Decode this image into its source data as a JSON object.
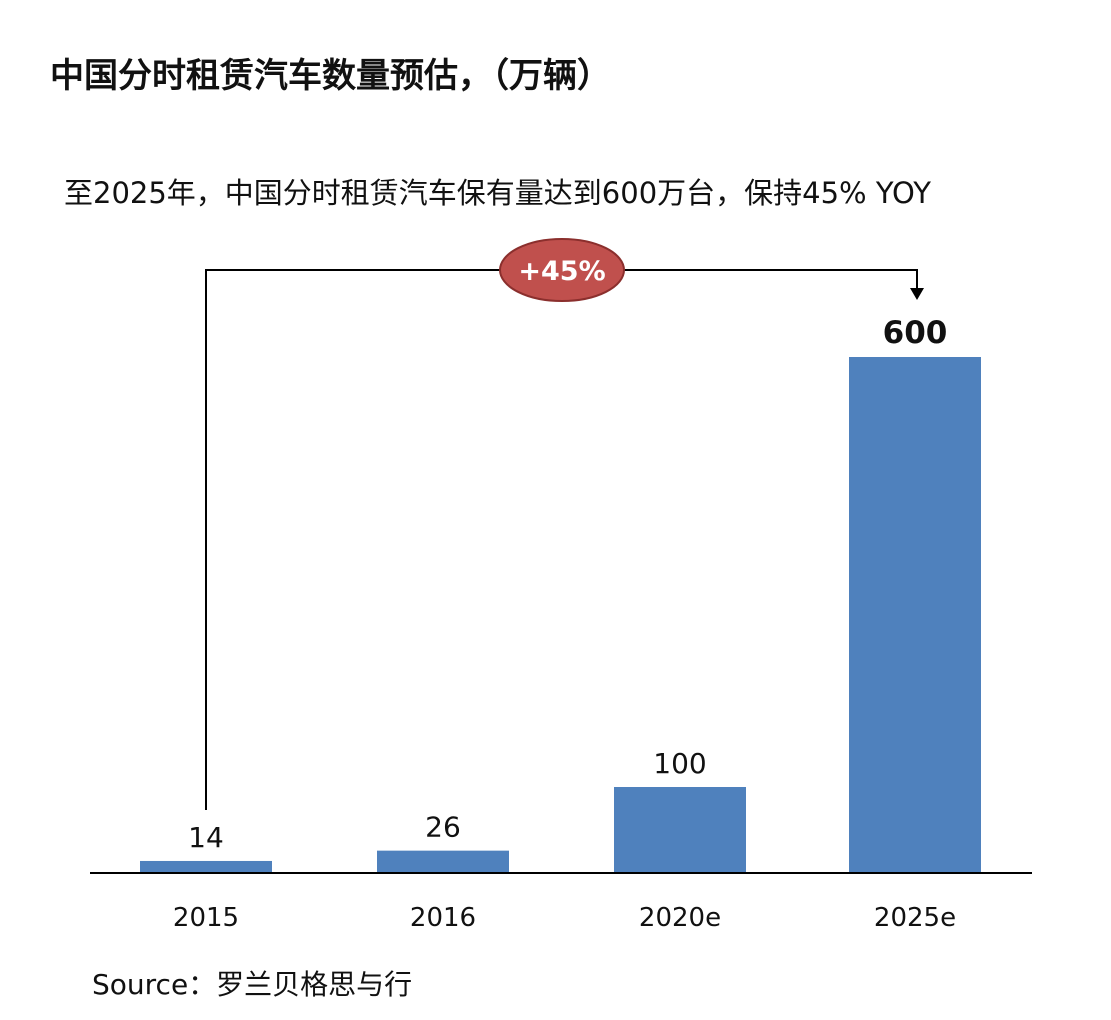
{
  "title": "中国分时租赁汽车数量预估，（万辆）",
  "subtitle": "至2025年，中国分时租赁汽车保有量达到600万台，保持45% YOY",
  "source": "Source：罗兰贝格思与行",
  "growth_badge": "+45%",
  "colors": {
    "bar": "#4f81bd",
    "badge": "#c0504d",
    "axis": "#000000"
  },
  "chart_data": {
    "type": "bar",
    "categories": [
      "2015",
      "2016",
      "2020e",
      "2025e"
    ],
    "values": [
      14,
      26,
      100,
      600
    ],
    "data_labels": [
      "14",
      "26",
      "100",
      "600"
    ],
    "emphasized_label_index": 3,
    "title": "中国分时租赁汽车数量预估，（万辆）",
    "xlabel": "",
    "ylabel": "",
    "ylim": [
      0,
      600
    ],
    "grid": false,
    "legend": "none"
  }
}
